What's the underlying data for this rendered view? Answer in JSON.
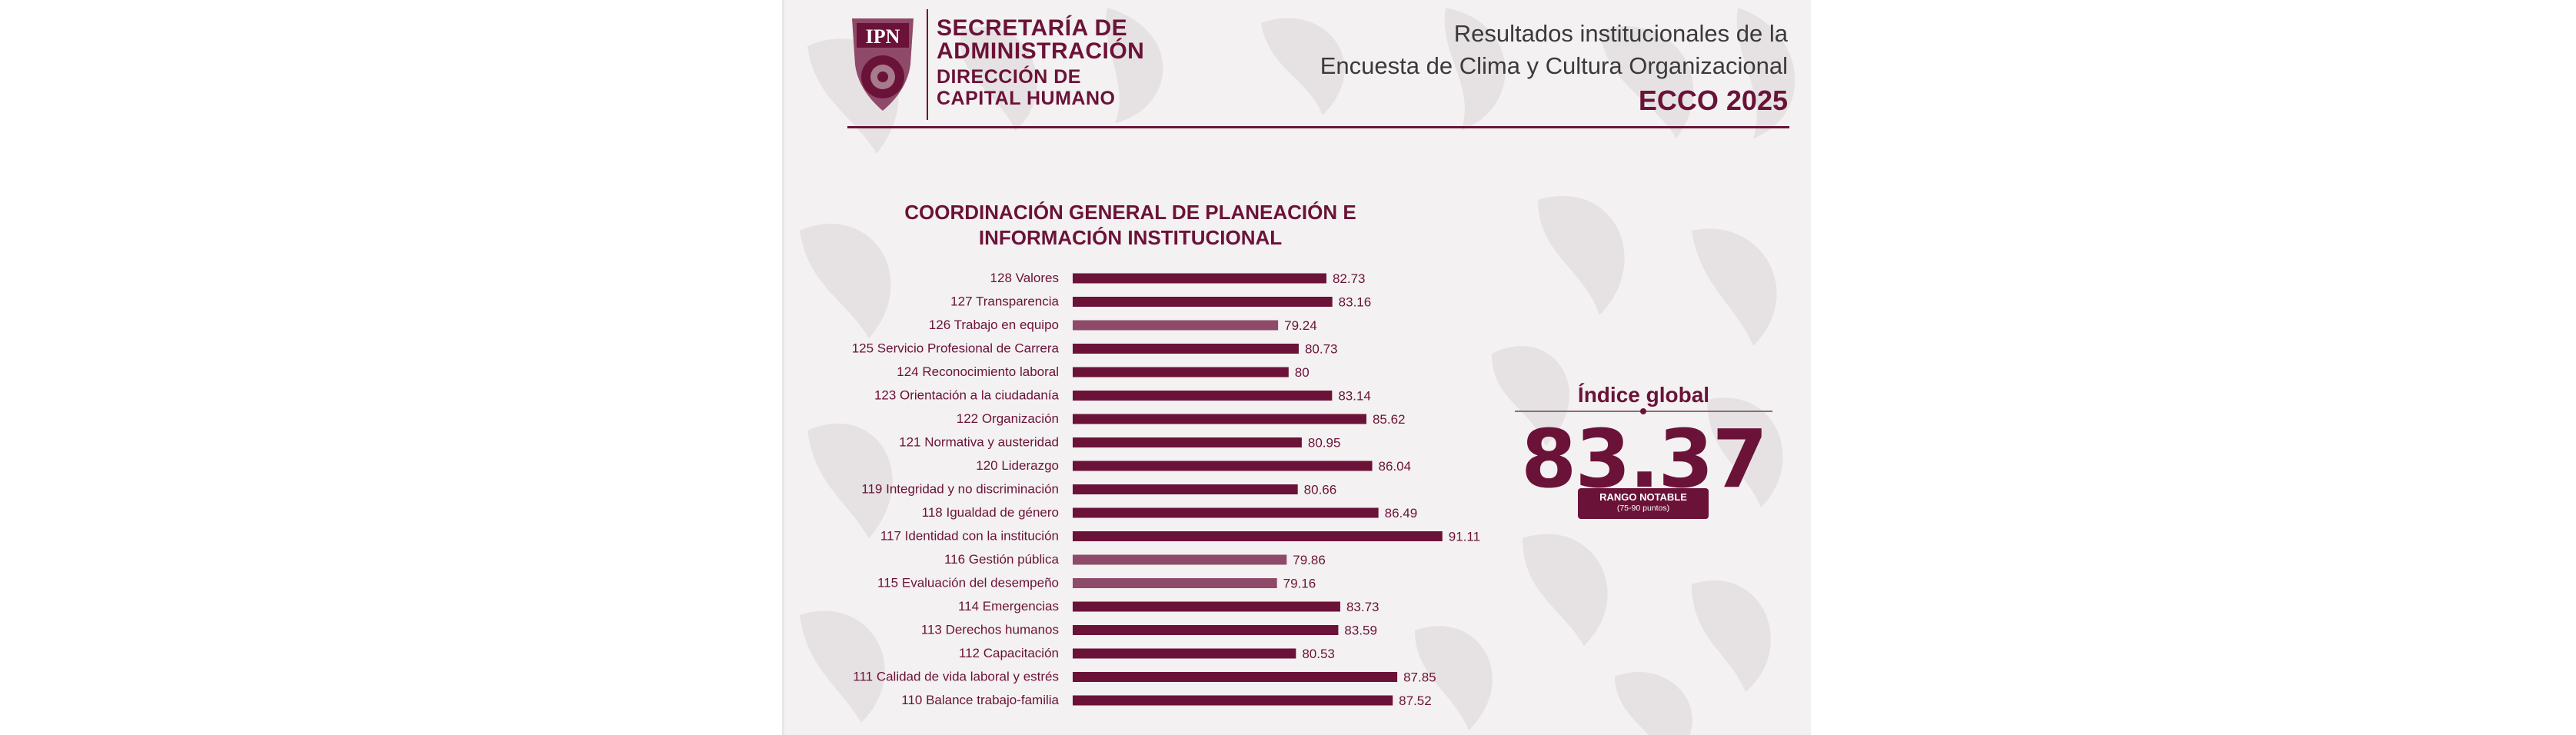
{
  "institution": {
    "line1": "SECRETARÍA DE",
    "line2": "ADMINISTRACIÓN",
    "line3": "DIRECCIÓN DE",
    "line4": "CAPITAL HUMANO",
    "logo_text": "IPN"
  },
  "report": {
    "line1": "Resultados institucionales de la",
    "line2": "Encuesta de Clima y Cultura Organizacional",
    "line3": "ECCO 2025"
  },
  "global_index": {
    "title": "Índice global",
    "value": "83.37",
    "badge_line1": "RANGO NOTABLE",
    "badge_line2": "(75-90 puntos)"
  },
  "colors": {
    "primary": "#6b1238",
    "bar_dark": "#6b1238",
    "bar_light": "#8f4a69"
  },
  "chart_data": {
    "type": "bar",
    "orientation": "horizontal",
    "title": "COORDINACIÓN GENERAL DE PLANEACIÓN E INFORMACIÓN INSTITUCIONAL",
    "categories": [
      "128 Valores",
      "127 Transparencia",
      "126 Trabajo en equipo",
      "125 Servicio Profesional de Carrera",
      "124 Reconocimiento laboral",
      "123 Orientación a la ciudadanía",
      "122 Organización",
      "121 Normativa y austeridad",
      "120 Liderazgo",
      "119 Integridad y no discriminación",
      "118 Igualdad de género",
      "117 Identidad con la institución",
      "116 Gestión pública",
      "115 Evaluación del desempeño",
      "114 Emergencias",
      "113 Derechos humanos",
      "112 Capacitación",
      "111 Calidad de vida laboral y estrés",
      "110 Balance trabajo-familia"
    ],
    "values": [
      82.73,
      83.16,
      79.24,
      80.73,
      80,
      83.14,
      85.62,
      80.95,
      86.04,
      80.66,
      86.49,
      91.11,
      79.86,
      79.16,
      83.73,
      83.59,
      80.53,
      87.85,
      87.52
    ],
    "value_labels": [
      "82.73",
      "83.16",
      "79.24",
      "80.73",
      "80",
      "83.14",
      "85.62",
      "80.95",
      "86.04",
      "80.66",
      "86.49",
      "91.11",
      "79.86",
      "79.16",
      "83.73",
      "83.59",
      "80.53",
      "87.85",
      "87.52"
    ],
    "highlight_threshold": 80,
    "axis_visible": false,
    "grid": false
  }
}
